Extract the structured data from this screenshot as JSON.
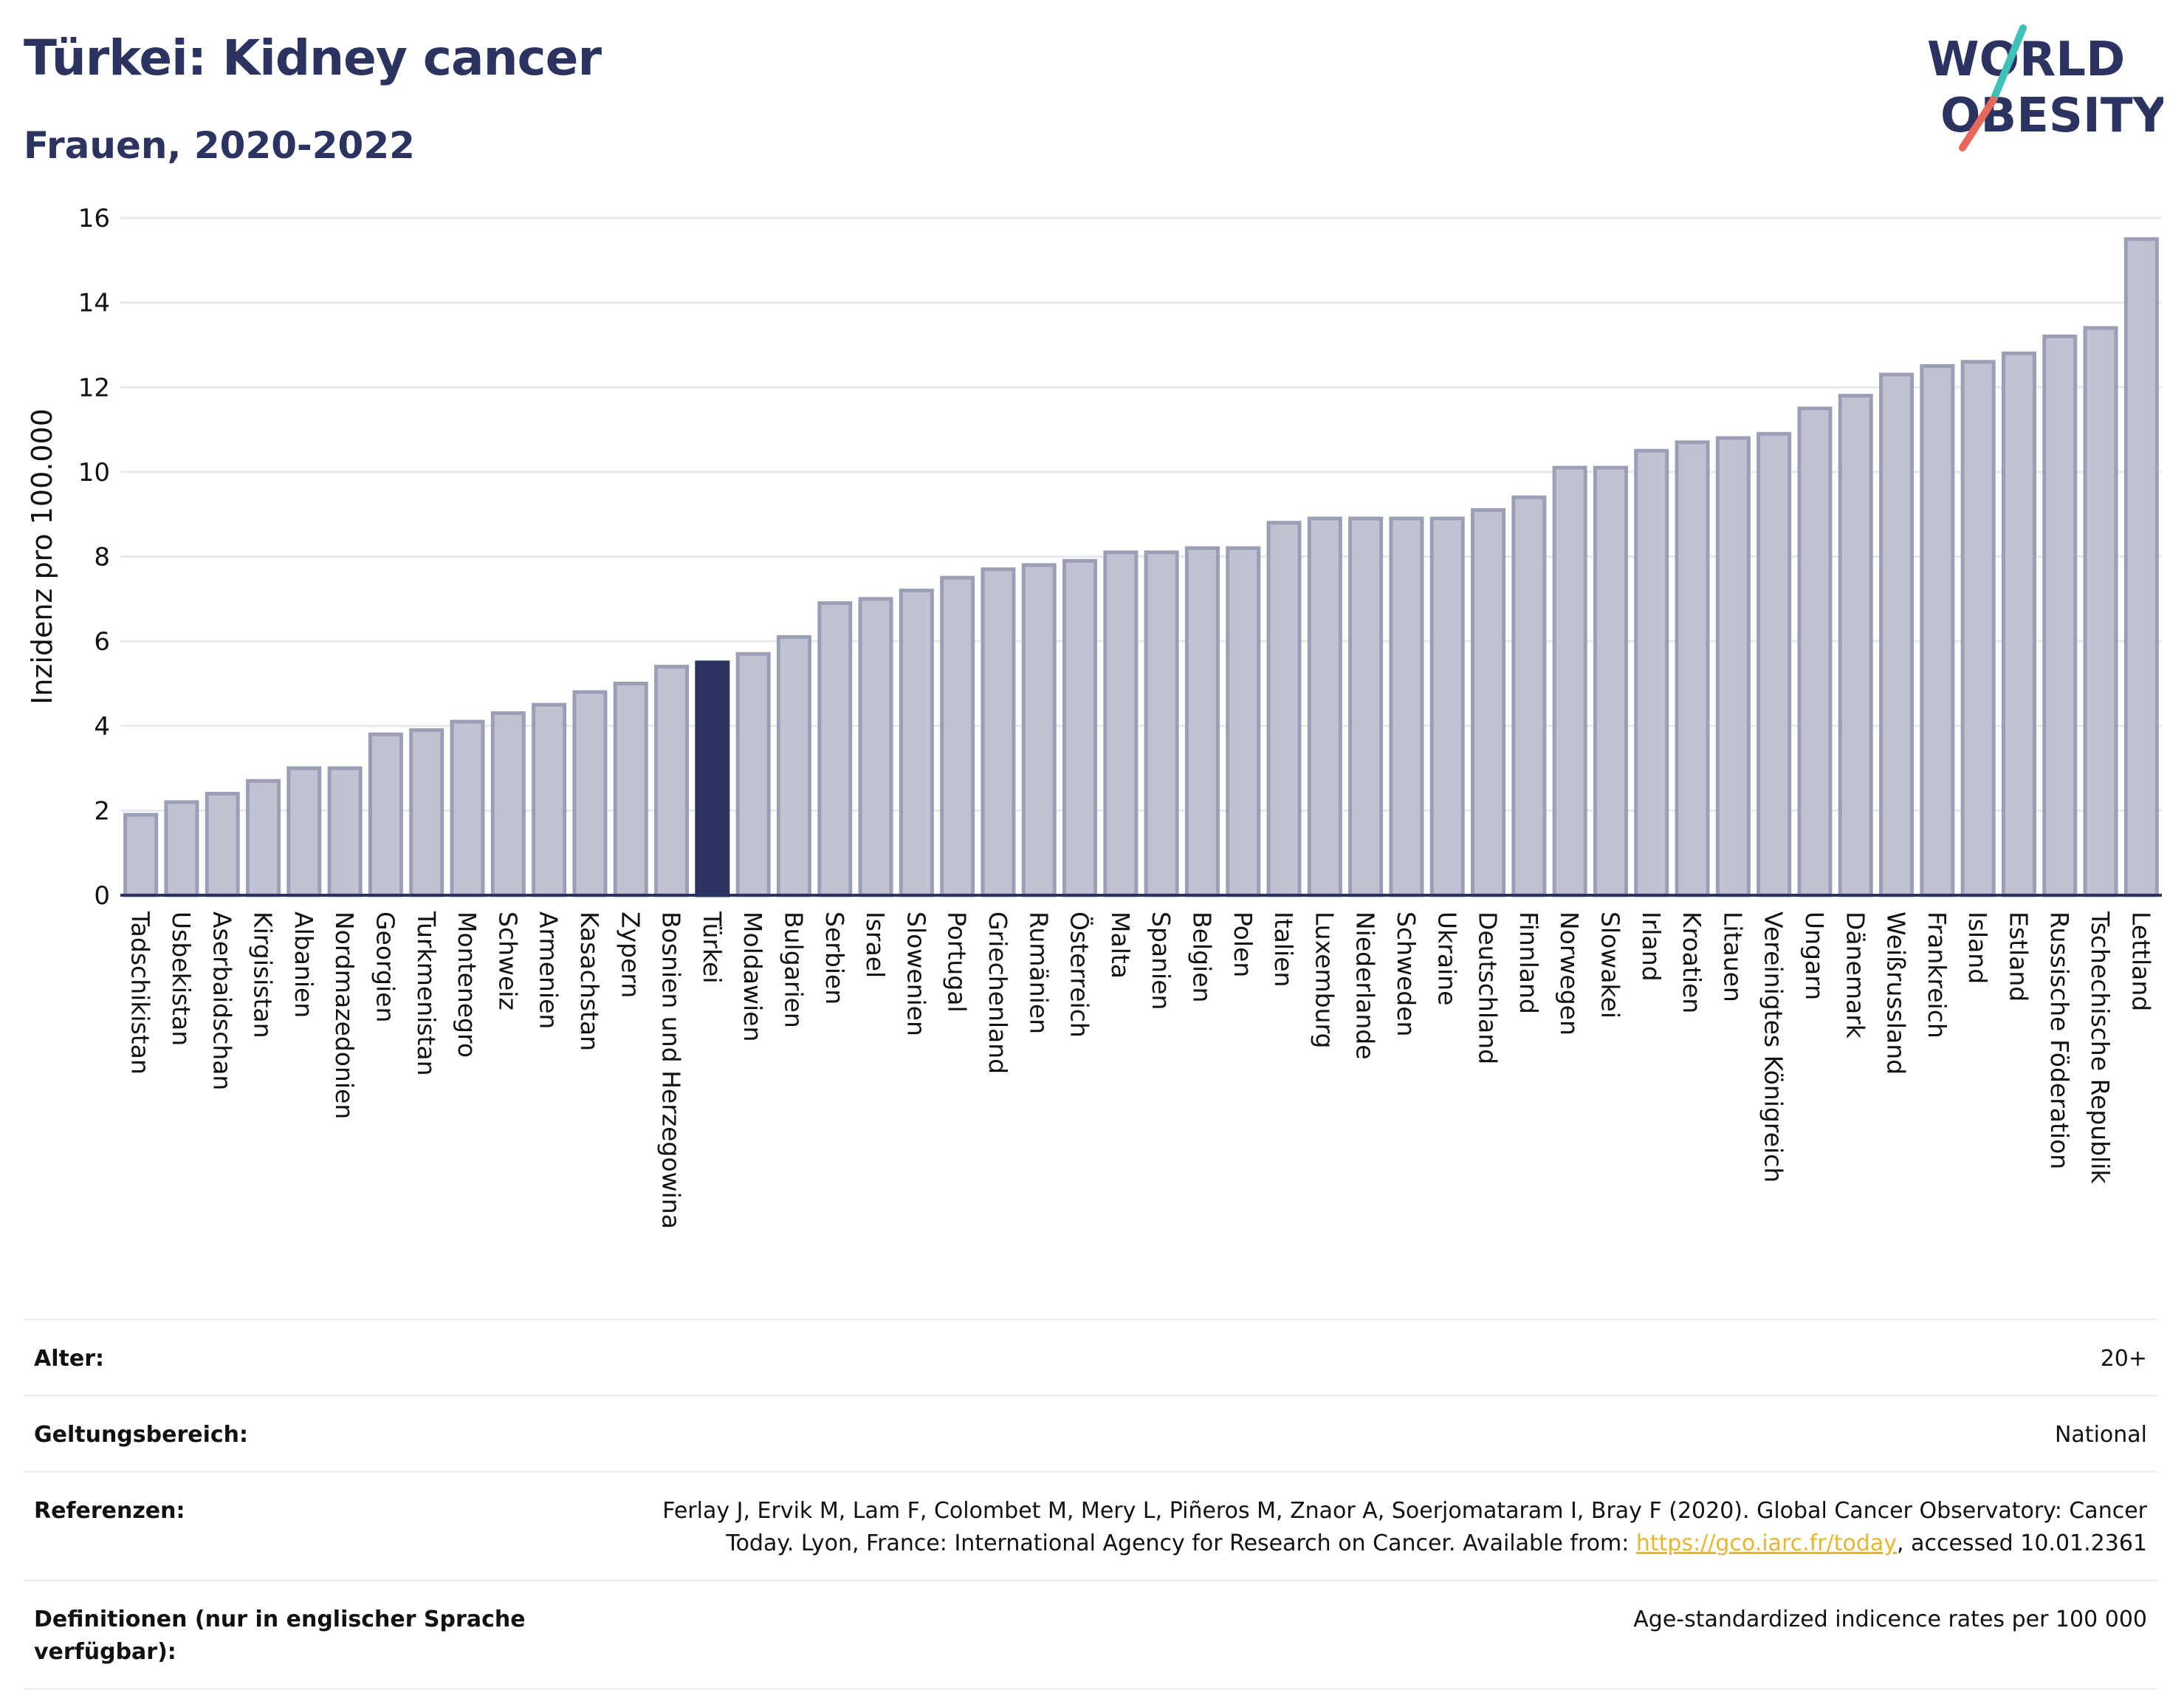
{
  "header": {
    "title": "Türkei: Kidney cancer",
    "subtitle": "Frauen, 2020-2022"
  },
  "logo": {
    "line1": "WORLD",
    "line2": "OBESITY",
    "colors": {
      "text": "#2b3361",
      "slash_top": "#3ec1b6",
      "slash_bottom": "#e8685a"
    }
  },
  "colors": {
    "bar_fill": "#bfc3d1",
    "bar_stroke": "#9a9fb6",
    "highlight_fill": "#2b3361",
    "axis": "#2b3361",
    "grid": "#e6e8ee"
  },
  "chart_data": {
    "type": "bar",
    "ylabel": "Inzidenz pro 100.000",
    "ylim": [
      0,
      16
    ],
    "yticks": [
      0,
      2,
      4,
      6,
      8,
      10,
      12,
      14,
      16
    ],
    "grid": true,
    "highlight": "Türkei",
    "categories": [
      "Tadschikistan",
      "Usbekistan",
      "Aserbaidschan",
      "Kirgisistan",
      "Albanien",
      "Nordmazedonien",
      "Georgien",
      "Turkmenistan",
      "Montenegro",
      "Schweiz",
      "Armenien",
      "Kasachstan",
      "Zypern",
      "Bosnien und Herzegowina",
      "Türkei",
      "Moldawien",
      "Bulgarien",
      "Serbien",
      "Israel",
      "Slowenien",
      "Portugal",
      "Griechenland",
      "Rumänien",
      "Österreich",
      "Malta",
      "Spanien",
      "Belgien",
      "Polen",
      "Italien",
      "Luxemburg",
      "Niederlande",
      "Schweden",
      "Ukraine",
      "Deutschland",
      "Finnland",
      "Norwegen",
      "Slowakei",
      "Irland",
      "Kroatien",
      "Litauen",
      "Vereinigtes Königreich",
      "Ungarn",
      "Dänemark",
      "Weißrussland",
      "Frankreich",
      "Island",
      "Estland",
      "Russische Föderation",
      "Tschechische Republik",
      "Lettland"
    ],
    "values": [
      1.9,
      2.2,
      2.4,
      2.7,
      3.0,
      3.0,
      3.8,
      3.9,
      4.1,
      4.3,
      4.5,
      4.8,
      5.0,
      5.4,
      5.5,
      5.7,
      6.1,
      6.9,
      7.0,
      7.2,
      7.5,
      7.7,
      7.8,
      7.9,
      8.1,
      8.1,
      8.2,
      8.2,
      8.8,
      8.9,
      8.9,
      8.9,
      8.9,
      9.1,
      9.4,
      10.1,
      10.1,
      10.5,
      10.7,
      10.8,
      10.9,
      11.5,
      11.8,
      12.3,
      12.5,
      12.6,
      12.8,
      13.2,
      13.4,
      15.5
    ]
  },
  "meta": [
    {
      "label": "Alter:",
      "value": "20+"
    },
    {
      "label": "Geltungsbereich:",
      "value": "National"
    },
    {
      "label": "Referenzen:",
      "value_part1": "Ferlay J, Ervik M, Lam F, Colombet M, Mery L, Piñeros M, Znaor A, Soerjomataram I, Bray F (2020). Global Cancer Observatory: Cancer Today. Lyon, France: International Agency for Research on Cancer. Available from: ",
      "link": "https://gco.iarc.fr/today",
      "value_part2": ", accessed 10.01.2361"
    },
    {
      "label": "Definitionen (nur in englischer Sprache verfügbar):",
      "value": "Age-standardized indicence rates per 100 000"
    }
  ]
}
